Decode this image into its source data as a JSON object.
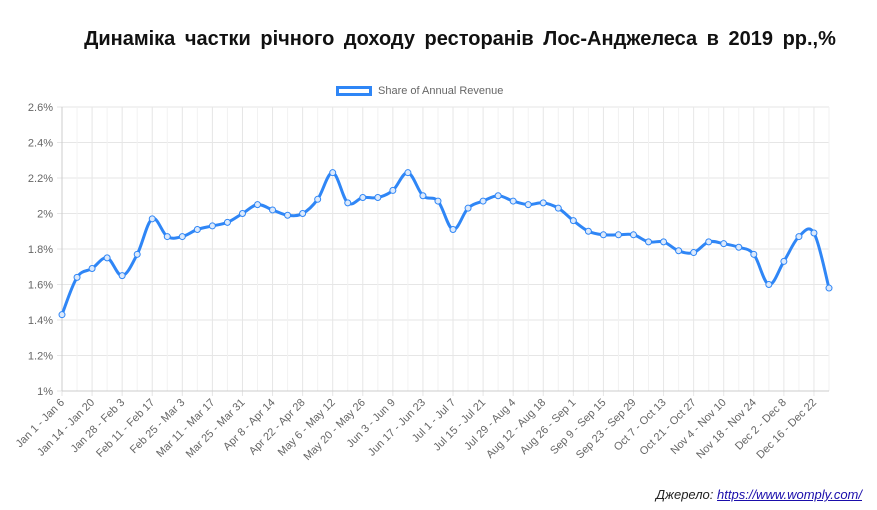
{
  "title": "Динаміка частки річного доходу ресторанів Лос-Анджелеса в 2019 рр.,%",
  "legend_label": "Share of Annual Revenue",
  "source_prefix": "Джерело:",
  "source_link": "https://www.womply.com/",
  "colors": {
    "line": "#2f86f6",
    "grid": "#e6e6e6",
    "text": "#666666"
  },
  "chart_data": {
    "type": "line",
    "title": "Динаміка частки річного доходу ресторанів Лос-Анджелеса в 2019 рр.,%",
    "ylim": [
      1,
      2.6
    ],
    "yticks": [
      "1%",
      "1.2%",
      "1.4%",
      "1.6%",
      "1.8%",
      "2%",
      "2.2%",
      "2.4%",
      "2.6%"
    ],
    "ytick_values": [
      1.0,
      1.2,
      1.4,
      1.6,
      1.8,
      2.0,
      2.2,
      2.4,
      2.6
    ],
    "grid": true,
    "legend": "top",
    "x_tick_labels": [
      "Jan 1 - Jan 6",
      "Jan 14 - Jan 20",
      "Jan 28 - Feb 3",
      "Feb 11 - Feb 17",
      "Feb 25 - Mar 3",
      "Mar 11 - Mar 17",
      "Mar 25 - Mar 31",
      "Apr 8 - Apr 14",
      "Apr 22 - Apr 28",
      "May 6 - May 12",
      "May 20 - May 26",
      "Jun 3 - Jun 9",
      "Jun 17 - Jun 23",
      "Jul 1 - Jul 7",
      "Jul 15 - Jul 21",
      "Jul 29 - Aug 4",
      "Aug 12 - Aug 18",
      "Aug 26 - Sep 1",
      "Sep 9 - Sep 15",
      "Sep 23 - Sep 29",
      "Oct 7 - Oct 13",
      "Oct 21 - Oct 27",
      "Nov 4 - Nov 10",
      "Nov 18 - Nov 24",
      "Dec 2 - Dec 8",
      "Dec 16 - Dec 22"
    ],
    "series": [
      {
        "name": "Share of Annual Revenue",
        "values": [
          1.43,
          1.64,
          1.69,
          1.75,
          1.65,
          1.77,
          1.97,
          1.87,
          1.87,
          1.91,
          1.93,
          1.95,
          2.0,
          2.05,
          2.02,
          1.99,
          2.0,
          2.08,
          2.23,
          2.06,
          2.09,
          2.09,
          2.13,
          2.23,
          2.1,
          2.07,
          1.91,
          2.03,
          2.07,
          2.1,
          2.07,
          2.05,
          2.06,
          2.03,
          1.96,
          1.9,
          1.88,
          1.88,
          1.88,
          1.84,
          1.84,
          1.79,
          1.78,
          1.84,
          1.83,
          1.81,
          1.77,
          1.6,
          1.73,
          1.87,
          1.89,
          1.58
        ]
      }
    ]
  }
}
